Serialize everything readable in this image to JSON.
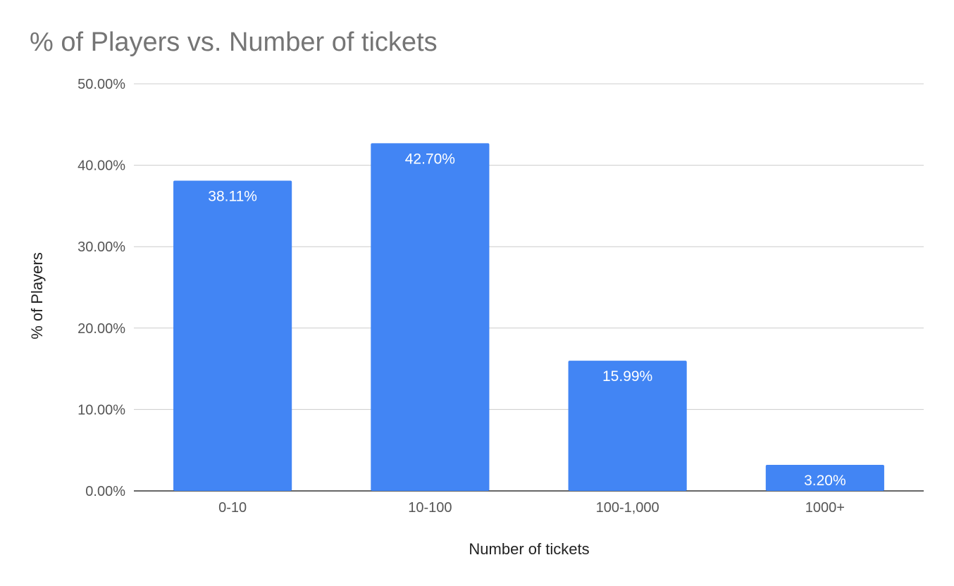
{
  "chart_data": {
    "type": "bar",
    "title": "% of Players vs. Number of tickets",
    "xlabel": "Number of tickets",
    "ylabel": "% of Players",
    "categories": [
      "0-10",
      "10-100",
      "100-1,000",
      "1000+"
    ],
    "values": [
      38.11,
      42.7,
      15.99,
      3.2
    ],
    "value_labels": [
      "38.11%",
      "42.70%",
      "15.99%",
      "3.20%"
    ],
    "ylim": [
      0,
      50
    ],
    "yticks": [
      0,
      10,
      20,
      30,
      40,
      50
    ],
    "ytick_labels": [
      "0.00%",
      "10.00%",
      "20.00%",
      "30.00%",
      "40.00%",
      "50.00%"
    ],
    "grid": true,
    "legend": "none",
    "colors": {
      "bar": "#4285f4"
    }
  }
}
